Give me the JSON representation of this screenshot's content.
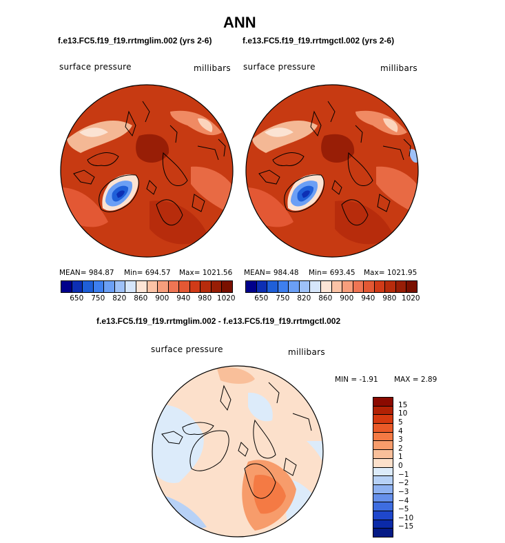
{
  "title": "ANN",
  "panels": [
    {
      "case": "f.e13.FC5.f19_f19.rrtmglim.002 (yrs 2-6)",
      "variable": "surface pressure",
      "units": "millibars",
      "mean_label": "MEAN= 984.87",
      "min_label": "Min= 694.57",
      "max_label": "Max= 1021.56"
    },
    {
      "case": "f.e13.FC5.f19_f19.rrtmgctl.002 (yrs 2-6)",
      "variable": "surface pressure",
      "units": "millibars",
      "mean_label": "MEAN= 984.48",
      "min_label": "Min= 693.45",
      "max_label": "Max= 1021.95"
    }
  ],
  "colorbar_top": {
    "ticks": [
      "650",
      "750",
      "820",
      "860",
      "900",
      "940",
      "980",
      "1020"
    ],
    "colors": [
      "#00008b",
      "#0d2fb4",
      "#1f5fd8",
      "#3e7fef",
      "#6b9ff5",
      "#9ec1f8",
      "#d6e6fb",
      "#fde5d6",
      "#fbc3a6",
      "#f79e7c",
      "#ef7554",
      "#e35834",
      "#d13b18",
      "#b72c0c",
      "#981e06",
      "#7a1000"
    ]
  },
  "diff_panel": {
    "title": "f.e13.FC5.f19_f19.rrtmglim.002 - f.e13.FC5.f19_f19.rrtmgctl.002",
    "variable": "surface pressure",
    "units": "millibars",
    "min_label": "MIN =  -1.91",
    "max_label": "MAX =    2.89"
  },
  "colorbar_diff": {
    "ticks": [
      "15",
      "10",
      "5",
      "4",
      "3",
      "2",
      "1",
      "0",
      "−1",
      "−2",
      "−3",
      "−4",
      "−5",
      "−10",
      "−15"
    ],
    "colors": [
      "#8b0a00",
      "#b22104",
      "#d6390f",
      "#ea5a28",
      "#f47a44",
      "#f79c6b",
      "#f9bf9a",
      "#fce0cb",
      "#dcebfa",
      "#b7d1f6",
      "#8fb2f1",
      "#6690eb",
      "#3e6de0",
      "#1f47cc",
      "#0b2aa8",
      "#051a85"
    ]
  }
}
